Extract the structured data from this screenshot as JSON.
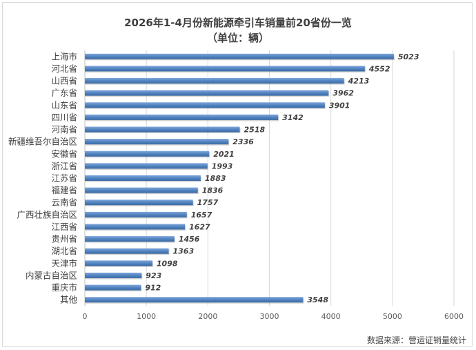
{
  "chart_data": {
    "type": "bar",
    "orientation": "horizontal",
    "title": "2026年1-4月份新能源牵引车销量前20省份一览",
    "subtitle": "（单位：辆）",
    "categories": [
      "上海市",
      "河北省",
      "山西省",
      "广东省",
      "山东省",
      "四川省",
      "河南省",
      "新疆维吾尔自治区",
      "安徽省",
      "浙江省",
      "江苏省",
      "福建省",
      "云南省",
      "广西壮族自治区",
      "江西省",
      "贵州省",
      "湖北省",
      "天津市",
      "内蒙古自治区",
      "重庆市",
      "其他"
    ],
    "values": [
      5023,
      4552,
      4213,
      3962,
      3901,
      3142,
      2518,
      2336,
      2021,
      1993,
      1883,
      1836,
      1757,
      1657,
      1627,
      1456,
      1363,
      1098,
      923,
      912,
      3548
    ],
    "xlim": [
      0,
      6000
    ],
    "xticks": [
      0,
      1000,
      2000,
      3000,
      4000,
      5000,
      6000
    ],
    "grid": true,
    "bar_color": "#4f81bd",
    "source": "数据来源：营运证销量统计"
  }
}
